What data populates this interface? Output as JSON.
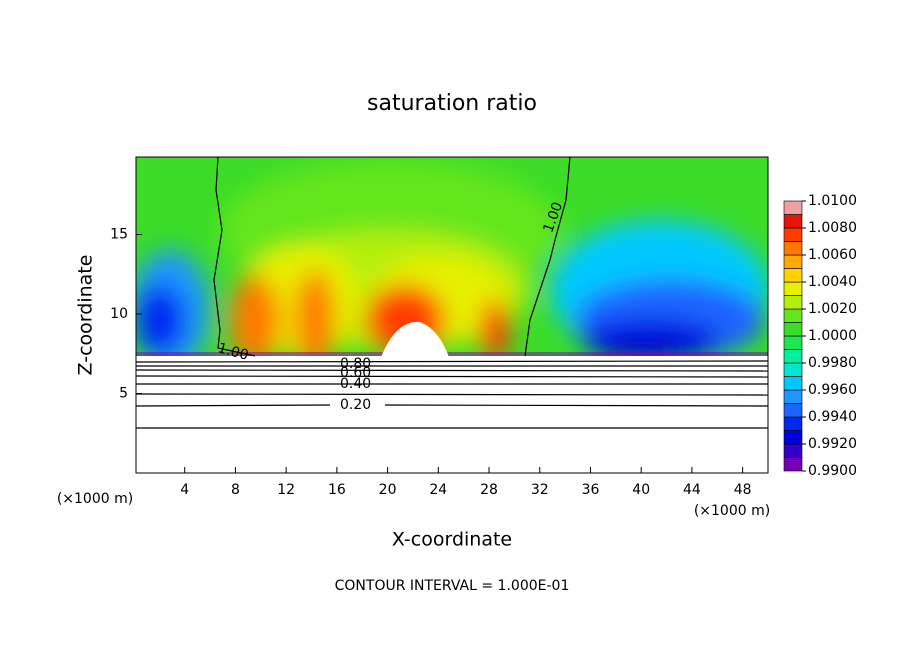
{
  "chart_data": {
    "type": "contour",
    "title": "saturation ratio",
    "x_label": "X-coordinate",
    "y_label": "Z-coordinate",
    "x_unit": "(×1000 m)",
    "footer": "CONTOUR INTERVAL = 1.000E-01",
    "xlim": [
      0,
      50
    ],
    "ylim": [
      0,
      20
    ],
    "xticks": [
      4,
      8,
      12,
      16,
      20,
      24,
      28,
      32,
      36,
      40,
      44,
      48
    ],
    "yticks": [
      5,
      10,
      15
    ],
    "colorbar": {
      "lim": [
        0.99,
        1.01
      ],
      "ticks": [
        {
          "value": 0.99,
          "label": "0.9900"
        },
        {
          "value": 0.992,
          "label": "0.9920"
        },
        {
          "value": 0.994,
          "label": "0.9940"
        },
        {
          "value": 0.996,
          "label": "0.9960"
        },
        {
          "value": 0.998,
          "label": "0.9980"
        },
        {
          "value": 1.0,
          "label": "1.0000"
        },
        {
          "value": 1.002,
          "label": "1.0020"
        },
        {
          "value": 1.004,
          "label": "1.0040"
        },
        {
          "value": 1.006,
          "label": "1.0060"
        },
        {
          "value": 1.008,
          "label": "1.0080"
        },
        {
          "value": 1.01,
          "label": "1.0100"
        }
      ],
      "colors": [
        "#7800b4",
        "#3200c8",
        "#0000dc",
        "#0028f0",
        "#1e64ff",
        "#1e96ff",
        "#00c8ff",
        "#00e6d2",
        "#00f0a0",
        "#20e650",
        "#3cdc28",
        "#64e61e",
        "#b4ee10",
        "#e6f000",
        "#ffd200",
        "#ffaa00",
        "#ff7800",
        "#ff3c00",
        "#e6140a",
        "#f0a0a0"
      ]
    },
    "contour_labels": [
      "1.00",
      "1.00",
      "0.80",
      "0.60",
      "0.40",
      "0.20"
    ]
  }
}
